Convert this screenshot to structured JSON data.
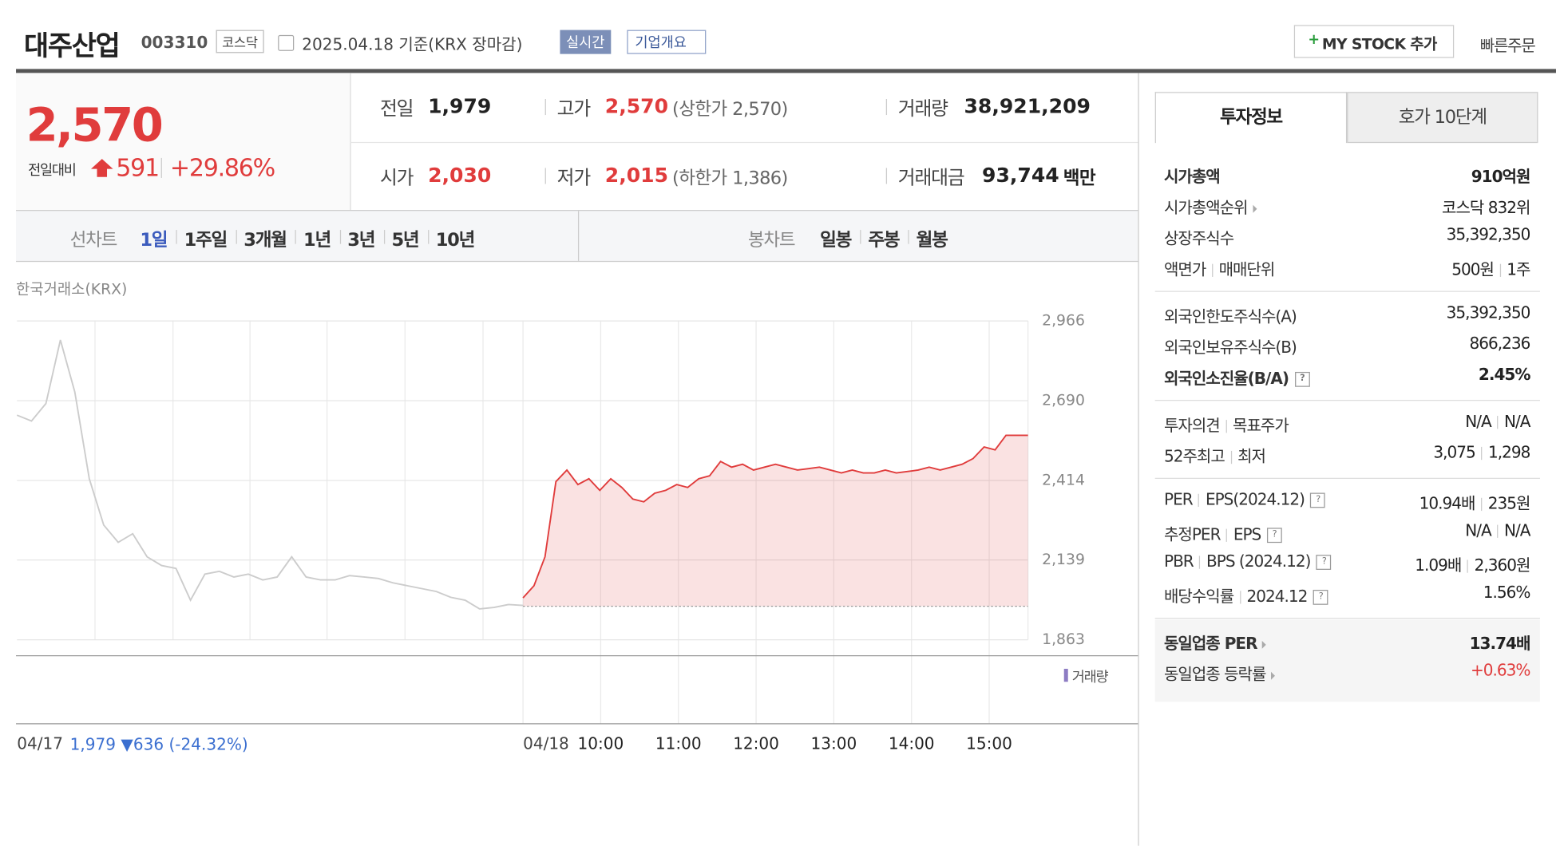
{
  "header": {
    "title": "대주산업",
    "code": "003310",
    "market": "코스닥",
    "date": "2025.04.18 기준(KRX 장마감)",
    "realtime": "실시간",
    "overview": "기업개요",
    "mystock": "MY STOCK 추가",
    "quick_order": "빠른주문"
  },
  "price": {
    "current": "2,570",
    "change_label": "전일대비",
    "change": "591",
    "change_rate": "+29.86%"
  },
  "quote": [
    {
      "label": "전일",
      "value": "1,979"
    },
    {
      "label": "고가",
      "value": "2,570",
      "sub": "(상한가 2,570)",
      "color": "#e03c3c"
    },
    {
      "label": "거래량",
      "value": "38,921,209"
    },
    {
      "label": "시가",
      "value": "2,030",
      "color": "#e03c3c"
    },
    {
      "label": "저가",
      "value": "2,015",
      "sub": "(하한가 1,386)",
      "color": "#e03c3c"
    },
    {
      "label": "거래대금",
      "value": "93,744",
      "sub": "백만"
    }
  ],
  "tabs": {
    "line_label": "선차트",
    "line": [
      "1일",
      "1주일",
      "3개월",
      "1년",
      "3년",
      "5년",
      "10년"
    ],
    "active": 0,
    "candle_label": "봉차트",
    "candle": [
      "일봉",
      "주봉",
      "월봉"
    ]
  },
  "chart_data": {
    "type": "line",
    "source": "한국거래소(KRX)",
    "ylim": [
      1863,
      2966
    ],
    "yticks": [
      {
        "value": 1863,
        "label": "1,863"
      },
      {
        "value": 2139,
        "label": "2,139"
      },
      {
        "value": 2414,
        "label": "2,414"
      },
      {
        "value": 2690,
        "label": "2,690"
      },
      {
        "value": 2966,
        "label": "2,966"
      }
    ],
    "grid": true,
    "baseline": 1979,
    "prev_note": "1,979 ▼636 (-24.32%)",
    "volume_label": "거래량",
    "x_labels": [
      "10:00",
      "11:00",
      "12:00",
      "13:00",
      "14:00",
      "15:00"
    ],
    "series": [
      {
        "name": "04/17",
        "color": "#cccccc",
        "values": [
          2640,
          2620,
          2680,
          2900,
          2720,
          2420,
          2260,
          2200,
          2230,
          2150,
          2120,
          2110,
          2000,
          2090,
          2100,
          2080,
          2090,
          2070,
          2080,
          2150,
          2080,
          2070,
          2070,
          2085,
          2080,
          2075,
          2060,
          2050,
          2040,
          2030,
          2010,
          2000,
          1970,
          1975,
          1985,
          1982
        ]
      },
      {
        "name": "04/18",
        "color": "#e03c3c",
        "values": [
          2008,
          2050,
          2150,
          2410,
          2450,
          2400,
          2420,
          2380,
          2420,
          2390,
          2350,
          2340,
          2370,
          2380,
          2400,
          2390,
          2420,
          2430,
          2480,
          2460,
          2470,
          2450,
          2460,
          2470,
          2460,
          2450,
          2455,
          2460,
          2450,
          2440,
          2450,
          2440,
          2440,
          2450,
          2440,
          2445,
          2450,
          2460,
          2450,
          2460,
          2470,
          2490,
          2530,
          2520,
          2570,
          2570,
          2570
        ]
      }
    ]
  },
  "side": {
    "tabs": [
      "투자정보",
      "호가 10단계"
    ],
    "sections": [
      [
        {
          "labels": [
            "시가총액"
          ],
          "values": [
            "910억원"
          ],
          "emphasis": true
        },
        {
          "labels": [
            "시가총액순위"
          ],
          "link": true,
          "values": [
            "코스닥 832위"
          ]
        },
        {
          "labels": [
            "상장주식수"
          ],
          "values": [
            "35,392,350"
          ]
        },
        {
          "labels": [
            "액면가",
            "매매단위"
          ],
          "values": [
            "500원",
            "1주"
          ]
        }
      ],
      [
        {
          "labels": [
            "외국인한도주식수(A)"
          ],
          "values": [
            "35,392,350"
          ]
        },
        {
          "labels": [
            "외국인보유주식수(B)"
          ],
          "values": [
            "866,236"
          ]
        },
        {
          "labels": [
            "외국인소진율(B/A)"
          ],
          "help": true,
          "values": [
            "2.45%"
          ],
          "emphasis": true
        }
      ],
      [
        {
          "labels": [
            "투자의견",
            "목표주가"
          ],
          "values": [
            "N/A",
            "N/A"
          ]
        },
        {
          "labels": [
            "52주최고",
            "최저"
          ],
          "values": [
            "3,075",
            "1,298"
          ]
        }
      ],
      [
        {
          "labels": [
            "PER",
            "EPS(2024.12)"
          ],
          "help": true,
          "values": [
            "10.94배",
            "235원"
          ]
        },
        {
          "labels": [
            "추정PER",
            "EPS"
          ],
          "help": true,
          "values": [
            "N/A",
            "N/A"
          ]
        },
        {
          "labels": [
            "PBR",
            "BPS (2024.12)"
          ],
          "help": true,
          "values": [
            "1.09배",
            "2,360원"
          ]
        },
        {
          "labels": [
            "배당수익률",
            "2024.12"
          ],
          "help": true,
          "values": [
            "1.56%"
          ]
        }
      ],
      [
        {
          "labels": [
            "동일업종 PER"
          ],
          "link": true,
          "values": [
            "13.74배"
          ],
          "emphasis": true
        },
        {
          "labels": [
            "동일업종 등락률"
          ],
          "link": true,
          "values": [
            "+0.63%"
          ],
          "color": "#e03c3c"
        }
      ]
    ]
  }
}
